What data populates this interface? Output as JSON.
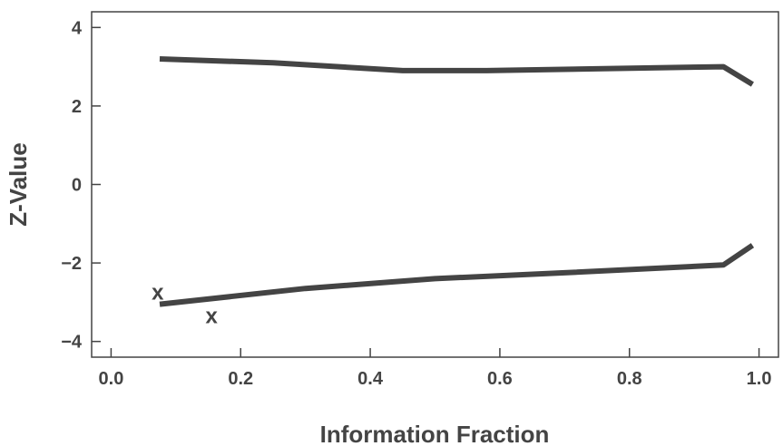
{
  "chart_data": {
    "type": "line",
    "xlabel": "Information Fraction",
    "ylabel": "Z-Value",
    "xlim": [
      -0.03,
      1.03
    ],
    "ylim": [
      -4.4,
      4.4
    ],
    "grid": false,
    "x_ticks": [
      {
        "value": 0.0,
        "label": "0.0"
      },
      {
        "value": 0.2,
        "label": "0.2"
      },
      {
        "value": 0.4,
        "label": "0.4"
      },
      {
        "value": 0.6,
        "label": "0.6"
      },
      {
        "value": 0.8,
        "label": "0.8"
      },
      {
        "value": 1.0,
        "label": "1.0"
      }
    ],
    "y_ticks": [
      {
        "value": 4,
        "label": "4"
      },
      {
        "value": 2,
        "label": "2"
      },
      {
        "value": 0,
        "label": "0"
      },
      {
        "value": -2,
        "label": "−2"
      },
      {
        "value": -4,
        "label": "−4"
      }
    ],
    "series": [
      {
        "color": "#444444",
        "points": [
          {
            "x": 0.075,
            "y": 3.2
          },
          {
            "x": 0.25,
            "y": 3.1
          },
          {
            "x": 0.45,
            "y": 2.9
          },
          {
            "x": 0.58,
            "y": 2.9
          },
          {
            "x": 0.945,
            "y": 3.0
          },
          {
            "x": 0.99,
            "y": 2.55
          }
        ]
      },
      {
        "color": "#444444",
        "points": [
          {
            "x": 0.075,
            "y": -3.05
          },
          {
            "x": 0.3,
            "y": -2.65
          },
          {
            "x": 0.5,
            "y": -2.4
          },
          {
            "x": 0.7,
            "y": -2.25
          },
          {
            "x": 0.945,
            "y": -2.05
          },
          {
            "x": 0.99,
            "y": -1.55
          }
        ]
      }
    ],
    "markers": [
      {
        "label": "x",
        "x": 0.072,
        "y": -2.75
      },
      {
        "label": "x",
        "x": 0.155,
        "y": -3.35
      }
    ],
    "colors": {
      "ink": "#444444",
      "axis": "#444444",
      "background": "#ffffff"
    }
  }
}
